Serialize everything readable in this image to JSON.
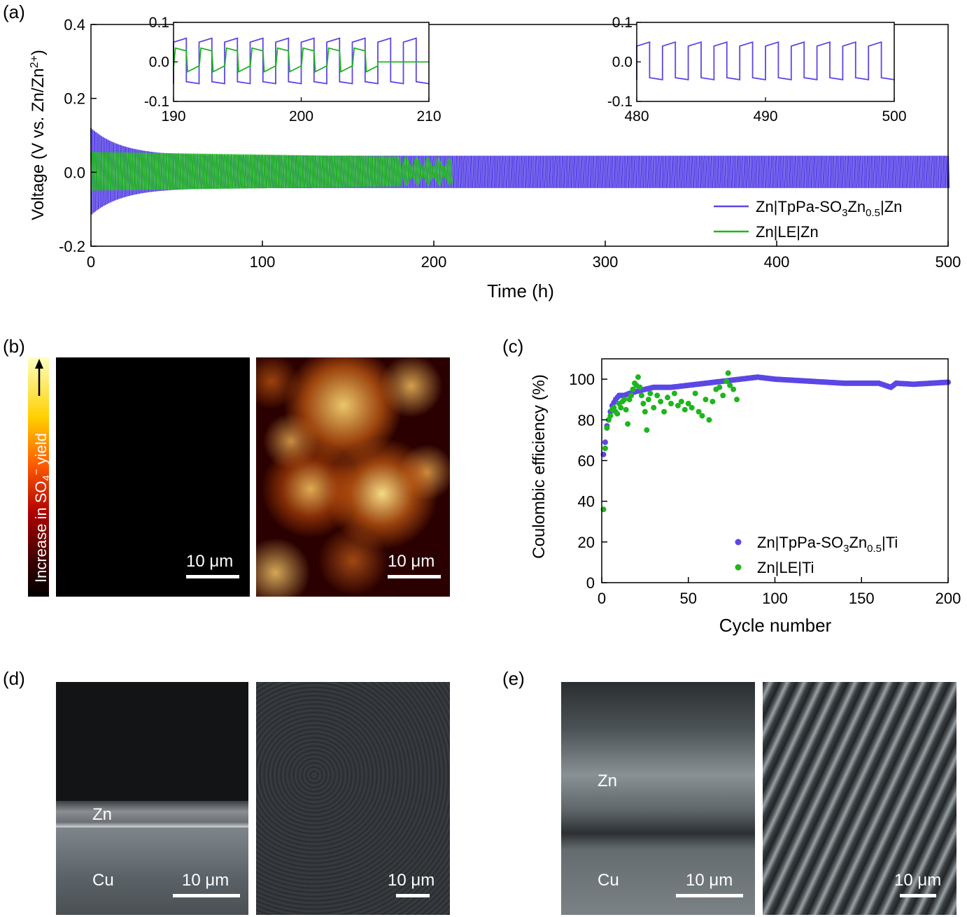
{
  "panels": {
    "a": "(a)",
    "b": "(b)",
    "c": "(c)",
    "d": "(d)",
    "e": "(e)"
  },
  "colors": {
    "tppa": "#5b47e6",
    "le": "#1fb51f"
  },
  "chart_data": [
    {
      "id": "a-main",
      "type": "line",
      "xlabel": "Time (h)",
      "ylabel": "Voltage (V vs. Zn/Zn²⁺)",
      "xlim": [
        0,
        500
      ],
      "ylim": [
        -0.2,
        0.4
      ],
      "xticks": [
        "0",
        "100",
        "200",
        "300",
        "400",
        "500"
      ],
      "yticks": [
        "-0.2",
        "0.0",
        "0.2",
        "0.4"
      ],
      "legend_position": "bottom-right",
      "series": [
        {
          "name": "Zn|TpPa-SO3Zn0.5|Zn",
          "x_range": [
            0,
            500
          ],
          "start_amplitude": 0.12,
          "end_amplitude": 0.045
        },
        {
          "name": "Zn|LE|Zn",
          "x_range": [
            0,
            210
          ],
          "start_amplitude": 0.055,
          "end_amplitude": 0.04
        }
      ]
    },
    {
      "id": "a-inset-1",
      "type": "line",
      "xlim": [
        190,
        210
      ],
      "ylim": [
        -0.1,
        0.1
      ],
      "xticks": [
        "190",
        "200",
        "210"
      ],
      "yticks": [
        "0.1",
        "0.0",
        "-0.1"
      ],
      "series": [
        {
          "name": "Zn|TpPa-SO3Zn0.5|Zn",
          "period_h": 2,
          "high": 0.06,
          "low": -0.055
        },
        {
          "name": "Zn|LE|Zn",
          "period_h": 2,
          "high": 0.035,
          "low": -0.025
        }
      ]
    },
    {
      "id": "a-inset-2",
      "type": "line",
      "xlim": [
        480,
        500
      ],
      "ylim": [
        -0.1,
        0.1
      ],
      "xticks": [
        "480",
        "490",
        "500"
      ],
      "yticks": [
        "0.1",
        "0.0",
        "-0.1"
      ],
      "series": [
        {
          "name": "Zn|TpPa-SO3Zn0.5|Zn",
          "period_h": 2,
          "high": 0.05,
          "low": -0.045
        }
      ]
    },
    {
      "id": "c",
      "type": "scatter",
      "xlabel": "Cycle number",
      "ylabel": "Coulombic efficiency (%)",
      "xlim": [
        0,
        200
      ],
      "ylim": [
        0,
        110
      ],
      "xticks": [
        "0",
        "50",
        "100",
        "150",
        "200"
      ],
      "yticks": [
        "0",
        "20",
        "40",
        "60",
        "80",
        "100"
      ],
      "legend_position": "bottom-right",
      "series": [
        {
          "name": "Zn|TpPa-SO3Zn0.5|Ti",
          "x": [
            1,
            2,
            3,
            4,
            5,
            6,
            8,
            10,
            13,
            16,
            20,
            25,
            30,
            40,
            50,
            60,
            70,
            80,
            90,
            100,
            110,
            120,
            130,
            140,
            150,
            160,
            167,
            170,
            180,
            190,
            200
          ],
          "y": [
            63,
            69,
            77,
            80,
            84,
            87,
            90,
            92,
            92,
            93,
            94,
            95,
            96,
            96,
            97,
            98,
            99,
            100,
            101,
            100,
            99.5,
            99,
            98.5,
            98,
            98,
            98,
            96,
            98,
            97.5,
            98,
            98.5
          ]
        },
        {
          "name": "Zn|LE|Ti",
          "x": [
            1,
            2,
            3,
            4,
            5,
            6,
            7,
            8,
            9,
            10,
            11,
            12,
            13,
            14,
            15,
            16,
            17,
            18,
            19,
            20,
            21,
            22,
            23,
            24,
            25,
            26,
            27,
            28,
            30,
            32,
            34,
            36,
            38,
            40,
            42,
            44,
            46,
            48,
            50,
            52,
            54,
            56,
            58,
            60,
            62,
            64,
            66,
            68,
            70,
            72,
            73,
            74,
            76,
            78
          ],
          "y": [
            36,
            66,
            76,
            80,
            82,
            85,
            86,
            84,
            83,
            88,
            86,
            89,
            90,
            85,
            78,
            90,
            92,
            95,
            98,
            97,
            101,
            96,
            92,
            88,
            84,
            75,
            90,
            93,
            86,
            92,
            89,
            84,
            91,
            88,
            93,
            87,
            89,
            85,
            88,
            86,
            93,
            84,
            82,
            90,
            80,
            89,
            95,
            96,
            92,
            99,
            103,
            97,
            95,
            90
          ]
        }
      ]
    }
  ],
  "b": {
    "colorbar_label_prefix": "Increase in SO",
    "colorbar_sub": "4",
    "colorbar_sup": "−",
    "colorbar_label_suffix": " yield",
    "scale_left": "10 μm",
    "scale_right": "10 μm"
  },
  "d": {
    "zn_label": "Zn",
    "cu_label": "Cu",
    "scale_left": "10 μm",
    "scale_right": "10 μm"
  },
  "e": {
    "zn_label": "Zn",
    "cu_label": "Cu",
    "scale_left": "10 μm",
    "scale_right": "10 μm"
  },
  "legend_a": {
    "tppa_prefix": "Zn|TpPa-SO",
    "tppa_sub1": "3",
    "tppa_mid": "Zn",
    "tppa_sub2": "0.5",
    "tppa_suffix": "|Zn",
    "le": "Zn|LE|Zn"
  },
  "legend_c": {
    "tppa_prefix": "Zn|TpPa-SO",
    "tppa_sub1": "3",
    "tppa_mid": "Zn",
    "tppa_sub2": "0.5",
    "tppa_suffix": "|Ti",
    "le": "Zn|LE|Ti"
  }
}
